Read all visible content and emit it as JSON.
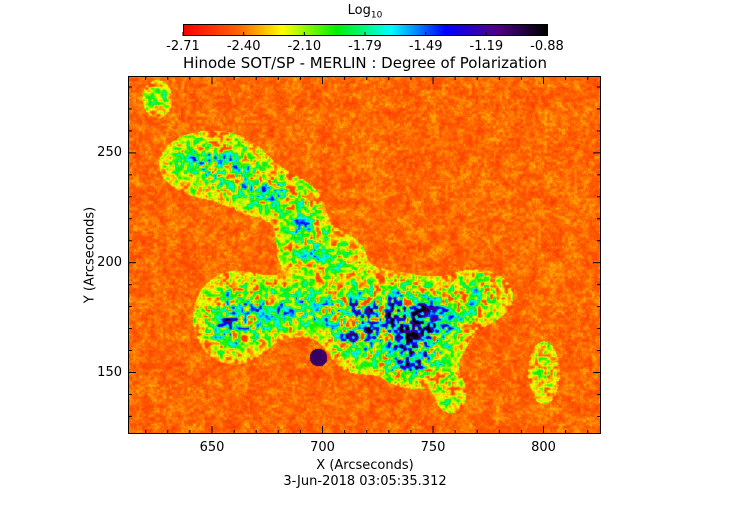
{
  "chart_data": {
    "type": "heatmap",
    "title": "Hinode SOT/SP - MERLIN : Degree of Polarization",
    "subtitle": "3-Jun-2018 03:05:35.312",
    "xlabel": "X (Arcseconds)",
    "ylabel": "Y (Arcseconds)",
    "xlim": [
      612,
      826
    ],
    "ylim": [
      122,
      285
    ],
    "xticks": [
      650,
      700,
      750,
      800
    ],
    "yticks": [
      150,
      200,
      250
    ],
    "colorbar": {
      "label": "Log",
      "label_sub": "10",
      "range": [
        -2.71,
        -0.88
      ],
      "ticks": [
        "-2.71",
        "-2.40",
        "-2.10",
        "-1.79",
        "-1.49",
        "-1.19",
        "-0.88"
      ],
      "colormap": "rainbow red-yellow-green-cyan-blue-purple-black",
      "colors": [
        "#ff0000",
        "#ff8000",
        "#ffff00",
        "#00ff00",
        "#00ffff",
        "#0000ff",
        "#400080",
        "#000000"
      ],
      "placement": "top"
    },
    "features": [
      {
        "description": "strong polarization patch",
        "x": 698,
        "y": 157,
        "value": -0.9
      }
    ]
  }
}
